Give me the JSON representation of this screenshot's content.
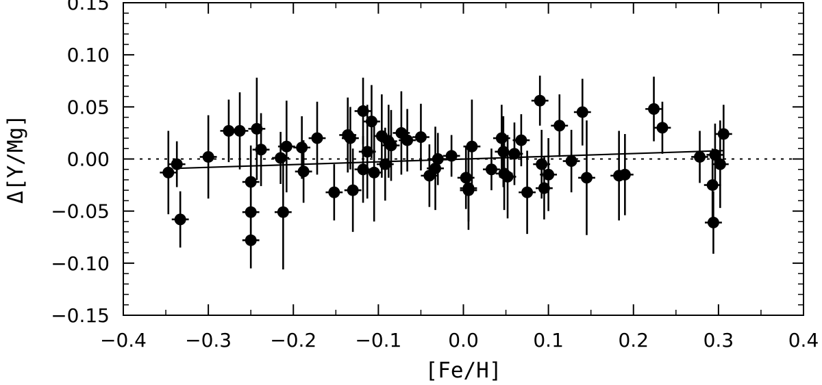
{
  "chart_data": {
    "type": "scatter",
    "xlabel": "[Fe/H]",
    "ylabel": "Δ[Y/Mg]",
    "xlim": [
      -0.4,
      0.4
    ],
    "ylim": [
      -0.15,
      0.15
    ],
    "x_ticks": [
      -0.4,
      -0.3,
      -0.2,
      -0.1,
      0.0,
      0.1,
      0.2,
      0.3,
      0.4
    ],
    "x_tick_labels": [
      "−0.4",
      "−0.3",
      "−0.2",
      "−0.1",
      "0.0",
      "0.1",
      "0.2",
      "0.3",
      "0.4"
    ],
    "y_ticks": [
      -0.15,
      -0.1,
      -0.05,
      0.0,
      0.05,
      0.1,
      0.15
    ],
    "y_tick_labels": [
      "−0.15",
      "−0.10",
      "−0.05",
      "0.00",
      "0.05",
      "0.10",
      "0.15"
    ],
    "reference_line": {
      "y": 0.0,
      "style": "dotted"
    },
    "fit_line": {
      "x": [
        -0.337,
        0.305
      ],
      "y": [
        -0.009,
        0.008
      ],
      "style": "solid"
    },
    "points": [
      {
        "x": -0.347,
        "y": -0.013,
        "xerr": 0.01,
        "yerr": 0.04
      },
      {
        "x": -0.337,
        "y": -0.005,
        "xerr": 0.01,
        "yerr": 0.022
      },
      {
        "x": -0.333,
        "y": -0.058,
        "xerr": 0.01,
        "yerr": 0.027
      },
      {
        "x": -0.3,
        "y": 0.002,
        "xerr": 0.01,
        "yerr": 0.04
      },
      {
        "x": -0.276,
        "y": 0.027,
        "xerr": 0.01,
        "yerr": 0.03
      },
      {
        "x": -0.263,
        "y": 0.027,
        "xerr": 0.01,
        "yerr": 0.037
      },
      {
        "x": -0.25,
        "y": -0.022,
        "xerr": 0.01,
        "yerr": 0.035
      },
      {
        "x": -0.25,
        "y": -0.051,
        "xerr": 0.01,
        "yerr": 0.03
      },
      {
        "x": -0.25,
        "y": -0.078,
        "xerr": 0.01,
        "yerr": 0.027
      },
      {
        "x": -0.243,
        "y": 0.029,
        "xerr": 0.01,
        "yerr": 0.049
      },
      {
        "x": -0.238,
        "y": 0.009,
        "xerr": 0.01,
        "yerr": 0.035
      },
      {
        "x": -0.215,
        "y": 0.001,
        "xerr": 0.01,
        "yerr": 0.025
      },
      {
        "x": -0.212,
        "y": -0.051,
        "xerr": 0.01,
        "yerr": 0.055
      },
      {
        "x": -0.208,
        "y": 0.012,
        "xerr": 0.01,
        "yerr": 0.044
      },
      {
        "x": -0.19,
        "y": 0.011,
        "xerr": 0.01,
        "yerr": 0.03
      },
      {
        "x": -0.188,
        "y": -0.012,
        "xerr": 0.01,
        "yerr": 0.03
      },
      {
        "x": -0.172,
        "y": 0.02,
        "xerr": 0.01,
        "yerr": 0.035
      },
      {
        "x": -0.152,
        "y": -0.032,
        "xerr": 0.01,
        "yerr": 0.027
      },
      {
        "x": -0.136,
        "y": 0.023,
        "xerr": 0.01,
        "yerr": 0.036
      },
      {
        "x": -0.133,
        "y": 0.02,
        "xerr": 0.01,
        "yerr": 0.03
      },
      {
        "x": -0.13,
        "y": -0.03,
        "xerr": 0.01,
        "yerr": 0.04
      },
      {
        "x": -0.118,
        "y": 0.046,
        "xerr": 0.01,
        "yerr": 0.032
      },
      {
        "x": -0.118,
        "y": -0.01,
        "xerr": 0.01,
        "yerr": 0.032
      },
      {
        "x": -0.113,
        "y": 0.007,
        "xerr": 0.01,
        "yerr": 0.045
      },
      {
        "x": -0.108,
        "y": 0.036,
        "xerr": 0.01,
        "yerr": 0.035
      },
      {
        "x": -0.105,
        "y": -0.013,
        "xerr": 0.01,
        "yerr": 0.047
      },
      {
        "x": -0.096,
        "y": 0.022,
        "xerr": 0.01,
        "yerr": 0.04
      },
      {
        "x": -0.092,
        "y": -0.005,
        "xerr": 0.01,
        "yerr": 0.035
      },
      {
        "x": -0.088,
        "y": 0.017,
        "xerr": 0.01,
        "yerr": 0.035
      },
      {
        "x": -0.085,
        "y": 0.013,
        "xerr": 0.01,
        "yerr": 0.034
      },
      {
        "x": -0.073,
        "y": 0.025,
        "xerr": 0.01,
        "yerr": 0.04
      },
      {
        "x": -0.066,
        "y": 0.018,
        "xerr": 0.01,
        "yerr": 0.03
      },
      {
        "x": -0.05,
        "y": 0.021,
        "xerr": 0.01,
        "yerr": 0.032
      },
      {
        "x": -0.04,
        "y": -0.016,
        "xerr": 0.01,
        "yerr": 0.03
      },
      {
        "x": -0.033,
        "y": -0.009,
        "xerr": 0.01,
        "yerr": 0.04
      },
      {
        "x": -0.03,
        "y": 0.0,
        "xerr": 0.01,
        "yerr": 0.025
      },
      {
        "x": -0.014,
        "y": 0.003,
        "xerr": 0.01,
        "yerr": 0.02
      },
      {
        "x": 0.003,
        "y": -0.018,
        "xerr": 0.01,
        "yerr": 0.03
      },
      {
        "x": 0.006,
        "y": -0.028,
        "xerr": 0.01,
        "yerr": 0.04
      },
      {
        "x": 0.006,
        "y": -0.03,
        "xerr": 0.01,
        "yerr": 0.03
      },
      {
        "x": 0.01,
        "y": 0.012,
        "xerr": 0.01,
        "yerr": 0.045
      },
      {
        "x": 0.033,
        "y": -0.01,
        "xerr": 0.01,
        "yerr": 0.02
      },
      {
        "x": 0.045,
        "y": 0.02,
        "xerr": 0.01,
        "yerr": 0.032
      },
      {
        "x": 0.047,
        "y": 0.007,
        "xerr": 0.01,
        "yerr": 0.034
      },
      {
        "x": 0.048,
        "y": -0.014,
        "xerr": 0.01,
        "yerr": 0.035
      },
      {
        "x": 0.052,
        "y": -0.017,
        "xerr": 0.01,
        "yerr": 0.04
      },
      {
        "x": 0.06,
        "y": 0.005,
        "xerr": 0.01,
        "yerr": 0.03
      },
      {
        "x": 0.068,
        "y": 0.018,
        "xerr": 0.01,
        "yerr": 0.025
      },
      {
        "x": 0.075,
        "y": -0.032,
        "xerr": 0.01,
        "yerr": 0.04
      },
      {
        "x": 0.09,
        "y": 0.056,
        "xerr": 0.01,
        "yerr": 0.024
      },
      {
        "x": 0.092,
        "y": -0.005,
        "xerr": 0.01,
        "yerr": 0.033
      },
      {
        "x": 0.095,
        "y": -0.028,
        "xerr": 0.01,
        "yerr": 0.03
      },
      {
        "x": 0.1,
        "y": -0.015,
        "xerr": 0.01,
        "yerr": 0.035
      },
      {
        "x": 0.113,
        "y": 0.032,
        "xerr": 0.01,
        "yerr": 0.03
      },
      {
        "x": 0.127,
        "y": -0.002,
        "xerr": 0.01,
        "yerr": 0.03
      },
      {
        "x": 0.14,
        "y": 0.045,
        "xerr": 0.01,
        "yerr": 0.032
      },
      {
        "x": 0.145,
        "y": -0.018,
        "xerr": 0.01,
        "yerr": 0.055
      },
      {
        "x": 0.183,
        "y": -0.016,
        "xerr": 0.01,
        "yerr": 0.043
      },
      {
        "x": 0.19,
        "y": -0.015,
        "xerr": 0.01,
        "yerr": 0.039
      },
      {
        "x": 0.224,
        "y": 0.048,
        "xerr": 0.01,
        "yerr": 0.031
      },
      {
        "x": 0.234,
        "y": 0.03,
        "xerr": 0.01,
        "yerr": 0.025
      },
      {
        "x": 0.278,
        "y": 0.002,
        "xerr": 0.01,
        "yerr": 0.025
      },
      {
        "x": 0.293,
        "y": -0.025,
        "xerr": 0.01,
        "yerr": 0.035
      },
      {
        "x": 0.294,
        "y": -0.061,
        "xerr": 0.01,
        "yerr": 0.03
      },
      {
        "x": 0.296,
        "y": 0.004,
        "xerr": 0.01,
        "yerr": 0.03
      },
      {
        "x": 0.302,
        "y": -0.005,
        "xerr": 0.01,
        "yerr": 0.042
      },
      {
        "x": 0.306,
        "y": 0.024,
        "xerr": 0.01,
        "yerr": 0.028
      }
    ]
  }
}
